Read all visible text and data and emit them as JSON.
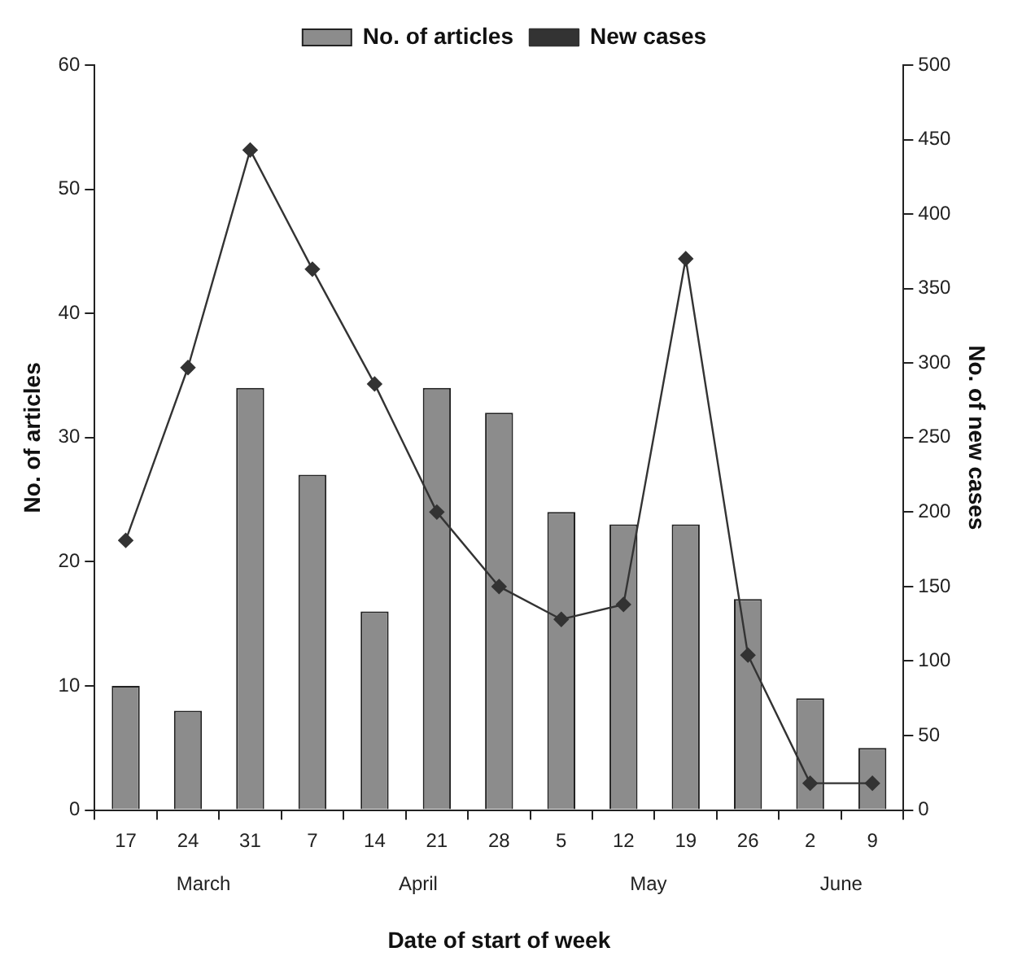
{
  "chart_data": {
    "type": "bar",
    "xlabel": "Date of start of week",
    "ylabel": "No. of articles",
    "y2label": "No. of new cases",
    "categories": [
      "17",
      "24",
      "31",
      "7",
      "14",
      "21",
      "28",
      "5",
      "12",
      "19",
      "26",
      "2",
      "9"
    ],
    "series": [
      {
        "name": "No. of articles",
        "color": "#8c8c8c",
        "values": [
          10,
          8,
          34,
          27,
          16,
          34,
          32,
          24,
          23,
          23,
          17,
          9,
          5
        ]
      },
      {
        "name": "New cases",
        "type": "line",
        "axis": "y2",
        "color": "#333333",
        "marker": "diamond",
        "values": [
          181,
          297,
          443,
          363,
          286,
          200,
          150,
          128,
          138,
          370,
          104,
          18,
          18
        ]
      }
    ],
    "ylim": [
      0,
      60
    ],
    "yticks": [
      0,
      10,
      20,
      30,
      40,
      50,
      60
    ],
    "y2lim": [
      0,
      500
    ],
    "y2ticks": [
      0,
      50,
      100,
      150,
      200,
      250,
      300,
      350,
      400,
      450,
      500
    ],
    "grid": false,
    "legend": "top",
    "annotations": [
      "March",
      "April",
      "May",
      "June"
    ]
  }
}
